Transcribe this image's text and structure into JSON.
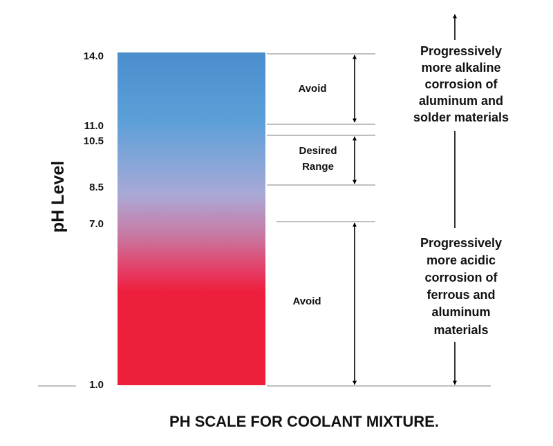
{
  "title": "PH SCALE FOR COOLANT MIXTURE.",
  "axis_label": "pH Level",
  "ticks": [
    "14.0",
    "11.0",
    "10.5",
    "8.5",
    "7.0",
    "1.0"
  ],
  "zones": {
    "upper_avoid": "Avoid",
    "desired": [
      "Desired",
      "Range"
    ],
    "lower_avoid": "Avoid"
  },
  "side_notes": {
    "alkaline": [
      "Progressively",
      "more alkaline",
      "corrosion of",
      "aluminum and",
      "solder materials"
    ],
    "acidic": [
      "Progressively",
      "more acidic",
      "corrosion of",
      "ferrous and",
      "aluminum",
      "materials"
    ]
  },
  "colors": {
    "alkaline_blue": "#4a8fcc",
    "neutral_lavender": "#aaa8d6",
    "acidic_red": "#ed1f3a"
  }
}
